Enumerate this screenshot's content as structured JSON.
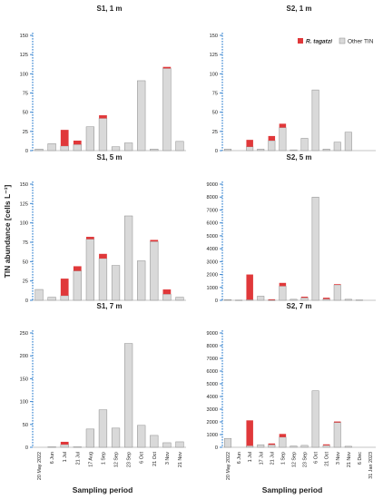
{
  "figure": {
    "ylabel": "TIN abundance [cells L⁻¹]",
    "xlabel": "Sampling period"
  },
  "legend": {
    "items": [
      {
        "label": "R. tagatzi",
        "color": "#e0383a"
      },
      {
        "label": "Other TIN",
        "color": "#d9d9d9"
      }
    ]
  },
  "colors": {
    "bar_red": "#e0383a",
    "bar_grey": "#d9d9d9",
    "bar_outline": "#8c8c8c",
    "axis_blue": "#3a86d1",
    "baseline": "#b0b0b0"
  },
  "chart_data": [
    {
      "type": "bar",
      "stacked": true,
      "title": "S1, 1 m",
      "categories": [
        "20 May 2022",
        "6 Jun",
        "1 Jul",
        "21 Jul",
        "17 Aug",
        "1 Sep",
        "12 Sep",
        "23 Sep",
        "6 Oct",
        "21 Oct",
        "3 Nov",
        "21 Nov"
      ],
      "series": [
        {
          "name": "Other TIN",
          "values": [
            2,
            9,
            6,
            8,
            31,
            42,
            5,
            10,
            91,
            2,
            107,
            12
          ]
        },
        {
          "name": "R. tagatzi",
          "values": [
            0,
            0,
            21,
            5,
            0,
            4,
            0,
            0,
            0,
            0,
            2,
            0
          ]
        }
      ],
      "ylim": [
        0,
        150
      ],
      "yticks": [
        0,
        25,
        50,
        75,
        100,
        125,
        150
      ]
    },
    {
      "type": "bar",
      "stacked": true,
      "title": "S2, 1 m",
      "categories": [
        "20 May 2022",
        "6 Jun",
        "1 Jul",
        "17 Jul",
        "21 Jul",
        "1 Sep",
        "12 Sep",
        "23 Sep",
        "6 Oct",
        "21 Oct",
        "3 Nov",
        "21 Nov",
        "6 Dec",
        "31 Jan 2023"
      ],
      "series": [
        {
          "name": "Other TIN",
          "values": [
            2,
            0,
            5,
            2,
            13,
            30,
            1,
            16,
            79,
            2,
            11,
            24,
            0,
            0
          ]
        },
        {
          "name": "R. tagatzi",
          "values": [
            0,
            0,
            9,
            0,
            6,
            5,
            0,
            0,
            0,
            0,
            0,
            0,
            0,
            0
          ]
        }
      ],
      "ylim": [
        0,
        150
      ],
      "yticks": [
        0,
        25,
        50,
        75,
        100,
        125,
        150
      ]
    },
    {
      "type": "bar",
      "stacked": true,
      "title": "S1, 5 m",
      "categories": [
        "20 May 2022",
        "6 Jun",
        "1 Jul",
        "21 Jul",
        "17 Aug",
        "1 Sep",
        "12 Sep",
        "23 Sep",
        "6 Oct",
        "21 Oct",
        "3 Nov",
        "21 Nov"
      ],
      "series": [
        {
          "name": "Other TIN",
          "values": [
            14,
            4,
            6,
            38,
            79,
            54,
            45,
            109,
            51,
            76,
            8,
            4
          ]
        },
        {
          "name": "R. tagatzi",
          "values": [
            0,
            0,
            22,
            6,
            3,
            6,
            0,
            0,
            0,
            2,
            6,
            0
          ]
        }
      ],
      "ylim": [
        0,
        150
      ],
      "yticks": [
        0,
        25,
        50,
        75,
        100,
        125,
        150
      ]
    },
    {
      "type": "bar",
      "stacked": true,
      "title": "S2, 5 m",
      "categories": [
        "20 May 2022",
        "6 Jun",
        "1 Jul",
        "17 Jul",
        "21 Jul",
        "1 Sep",
        "12 Sep",
        "23 Sep",
        "6 Oct",
        "21 Oct",
        "3 Nov",
        "21 Nov",
        "6 Dec",
        "31 Jan 2023"
      ],
      "series": [
        {
          "name": "Other TIN",
          "values": [
            50,
            20,
            50,
            320,
            20,
            1100,
            80,
            200,
            8000,
            100,
            1200,
            80,
            30,
            0
          ]
        },
        {
          "name": "R. tagatzi",
          "values": [
            0,
            0,
            1950,
            0,
            60,
            250,
            0,
            80,
            0,
            100,
            50,
            0,
            0,
            0
          ]
        }
      ],
      "ylim": [
        0,
        9000
      ],
      "yticks": [
        0,
        1000,
        2000,
        3000,
        4000,
        5000,
        6000,
        7000,
        8000,
        9000
      ]
    },
    {
      "type": "bar",
      "stacked": true,
      "title": "S1, 7 m",
      "categories": [
        "20 May 2022",
        "6 Jun",
        "1 Jul",
        "21 Jul",
        "17 Aug",
        "1 Sep",
        "12 Sep",
        "23 Sep",
        "6 Oct",
        "21 Oct",
        "3 Nov",
        "21 Nov"
      ],
      "series": [
        {
          "name": "Other TIN",
          "values": [
            0,
            1,
            6,
            1,
            40,
            82,
            42,
            227,
            48,
            26,
            10,
            12
          ]
        },
        {
          "name": "R. tagatzi",
          "values": [
            0,
            0,
            6,
            0,
            0,
            0,
            0,
            0,
            0,
            0,
            0,
            0
          ]
        }
      ],
      "ylim": [
        0,
        250
      ],
      "yticks": [
        0,
        50,
        100,
        150,
        200,
        250
      ]
    },
    {
      "type": "bar",
      "stacked": true,
      "title": "S2, 7 m",
      "categories": [
        "20 May 2022",
        "6 Jun",
        "1 Jul",
        "17 Jul",
        "21 Jul",
        "1 Sep",
        "12 Sep",
        "23 Sep",
        "6 Oct",
        "21 Oct",
        "3 Nov",
        "21 Nov",
        "6 Dec",
        "31 Jan 2023"
      ],
      "series": [
        {
          "name": "Other TIN",
          "values": [
            700,
            0,
            120,
            200,
            200,
            800,
            100,
            150,
            4450,
            150,
            1950,
            80,
            0,
            0
          ]
        },
        {
          "name": "R. tagatzi",
          "values": [
            0,
            0,
            2000,
            0,
            100,
            250,
            0,
            0,
            0,
            80,
            80,
            0,
            0,
            0
          ]
        }
      ],
      "ylim": [
        0,
        9000
      ],
      "yticks": [
        0,
        1000,
        2000,
        3000,
        4000,
        5000,
        6000,
        7000,
        8000,
        9000
      ]
    }
  ]
}
